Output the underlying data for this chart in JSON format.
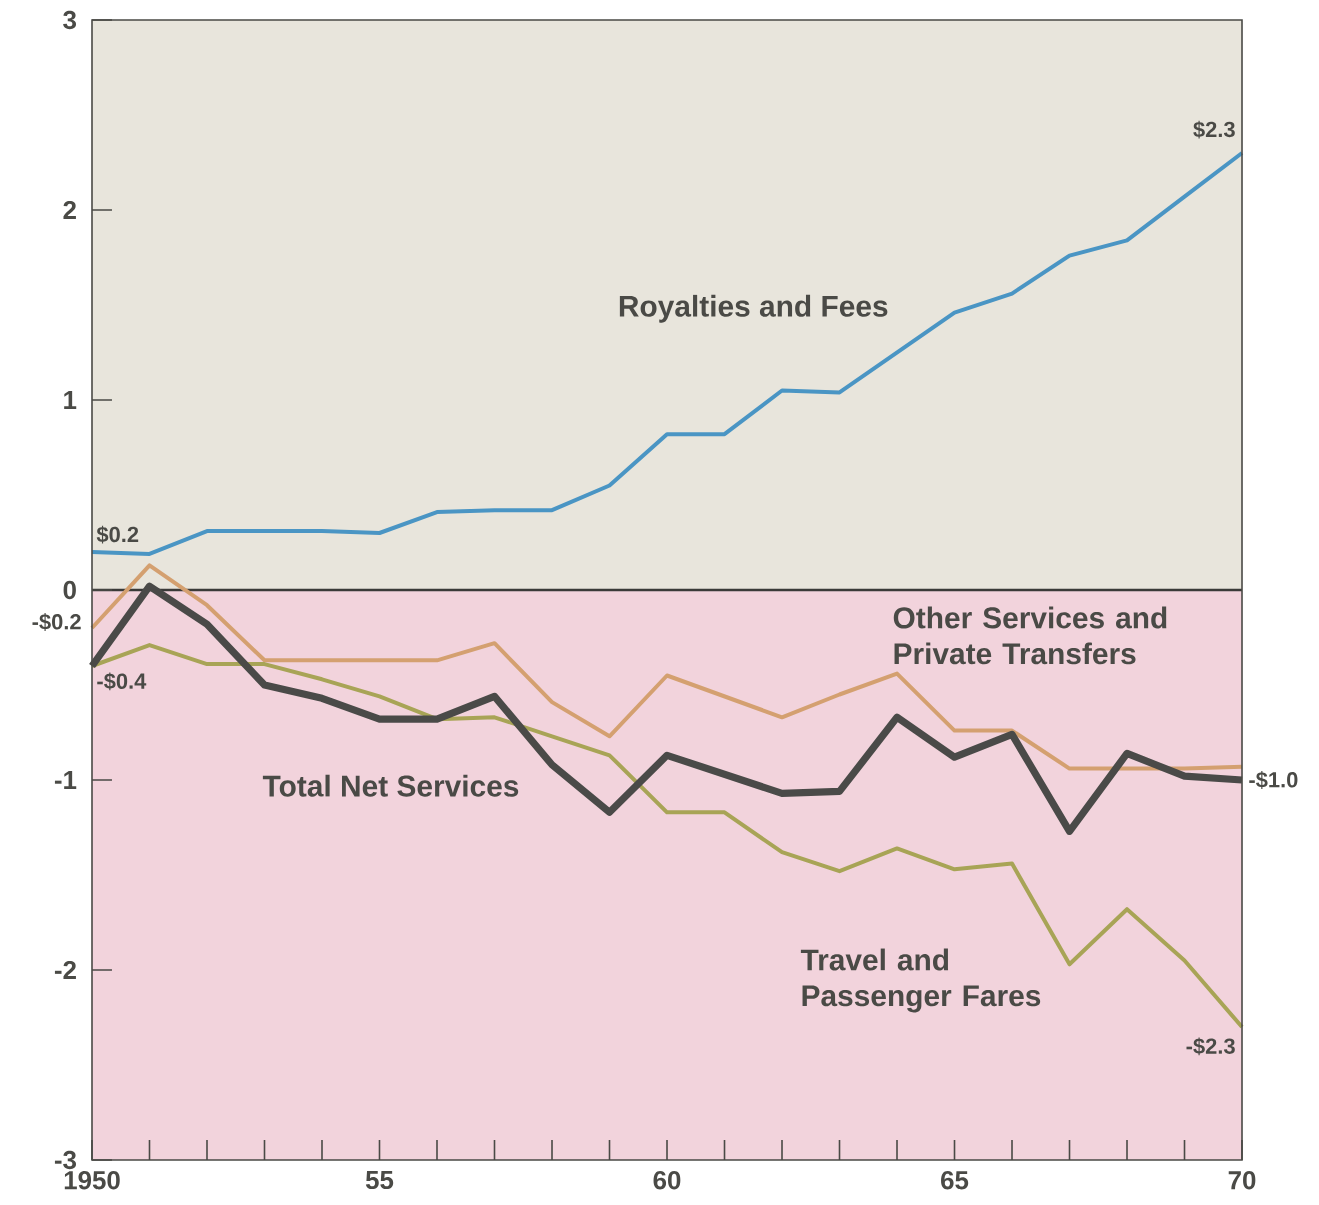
{
  "chart_data": {
    "type": "line",
    "x": [
      1950,
      1951,
      1952,
      1953,
      1954,
      1955,
      1956,
      1957,
      1958,
      1959,
      1960,
      1961,
      1962,
      1963,
      1964,
      1965,
      1966,
      1967,
      1968,
      1969,
      1970
    ],
    "series": [
      {
        "name": "Royalties and Fees",
        "color": "#4a95c4",
        "values": [
          0.2,
          0.19,
          0.31,
          0.31,
          0.31,
          0.3,
          0.41,
          0.42,
          0.42,
          0.55,
          0.82,
          0.82,
          1.05,
          1.04,
          1.25,
          1.46,
          1.56,
          1.76,
          1.84,
          2.07,
          2.3
        ],
        "value_labels": [
          "$0.2",
          null,
          null,
          null,
          null,
          null,
          null,
          null,
          null,
          null,
          null,
          null,
          null,
          null,
          null,
          null,
          null,
          null,
          null,
          null,
          "$2.3"
        ]
      },
      {
        "name": "Other Services and Private Transfers",
        "color": "#d4a070",
        "values": [
          -0.2,
          0.13,
          -0.08,
          -0.37,
          -0.37,
          -0.37,
          -0.37,
          -0.28,
          -0.59,
          -0.77,
          -0.45,
          -0.56,
          -0.67,
          -0.55,
          -0.44,
          -0.74,
          -0.74,
          -0.94,
          -0.94,
          -0.94,
          -0.93
        ],
        "value_labels": [
          "-$0.2",
          null,
          null,
          null,
          null,
          null,
          null,
          null,
          null,
          null,
          null,
          null,
          null,
          null,
          null,
          null,
          null,
          null,
          null,
          null,
          null
        ]
      },
      {
        "name": "Travel and Passenger Fares",
        "color": "#a8a456",
        "values": [
          -0.4,
          -0.29,
          -0.39,
          -0.39,
          -0.47,
          -0.56,
          -0.68,
          -0.67,
          -0.77,
          -0.87,
          -1.17,
          -1.17,
          -1.38,
          -1.48,
          -1.36,
          -1.47,
          -1.44,
          -1.97,
          -1.68,
          -1.95,
          -2.3
        ],
        "value_labels": [
          null,
          null,
          null,
          null,
          null,
          null,
          null,
          null,
          null,
          null,
          null,
          null,
          null,
          null,
          null,
          null,
          null,
          null,
          null,
          null,
          "-$2.3"
        ]
      },
      {
        "name": "Total Net Services",
        "color": "#4a4a48",
        "values": [
          -0.4,
          0.02,
          -0.18,
          -0.5,
          -0.57,
          -0.68,
          -0.68,
          -0.56,
          -0.92,
          -1.17,
          -0.87,
          -0.97,
          -1.07,
          -1.06,
          -0.67,
          -0.88,
          -0.76,
          -1.27,
          -0.86,
          -0.98,
          -1.0
        ],
        "value_labels": [
          "-$0.4",
          null,
          null,
          null,
          null,
          null,
          null,
          null,
          null,
          null,
          null,
          null,
          null,
          null,
          null,
          null,
          null,
          null,
          null,
          null,
          "-$1.0"
        ]
      }
    ],
    "xlim": [
      1950,
      1970
    ],
    "xticks": [
      1950,
      {
        "value": 1955,
        "label": "55"
      },
      {
        "value": 1960,
        "label": "60"
      },
      {
        "value": 1965,
        "label": "65"
      },
      {
        "value": 1970,
        "label": "70"
      }
    ],
    "ylim": [
      -3,
      3
    ],
    "yticks": [
      -3,
      -2,
      -1,
      0,
      1,
      2,
      3
    ],
    "bands": [
      {
        "axis": "y",
        "from": 0,
        "to": 3,
        "color": "#e8e5dc"
      },
      {
        "axis": "y",
        "from": -3,
        "to": 0,
        "color": "#f2d3dc"
      }
    ],
    "ref_lines": [
      {
        "axis": "y",
        "value": 0,
        "color": "#3a3a38"
      }
    ],
    "grid": false,
    "legend": false,
    "marker": "none",
    "line_style": "solid"
  }
}
